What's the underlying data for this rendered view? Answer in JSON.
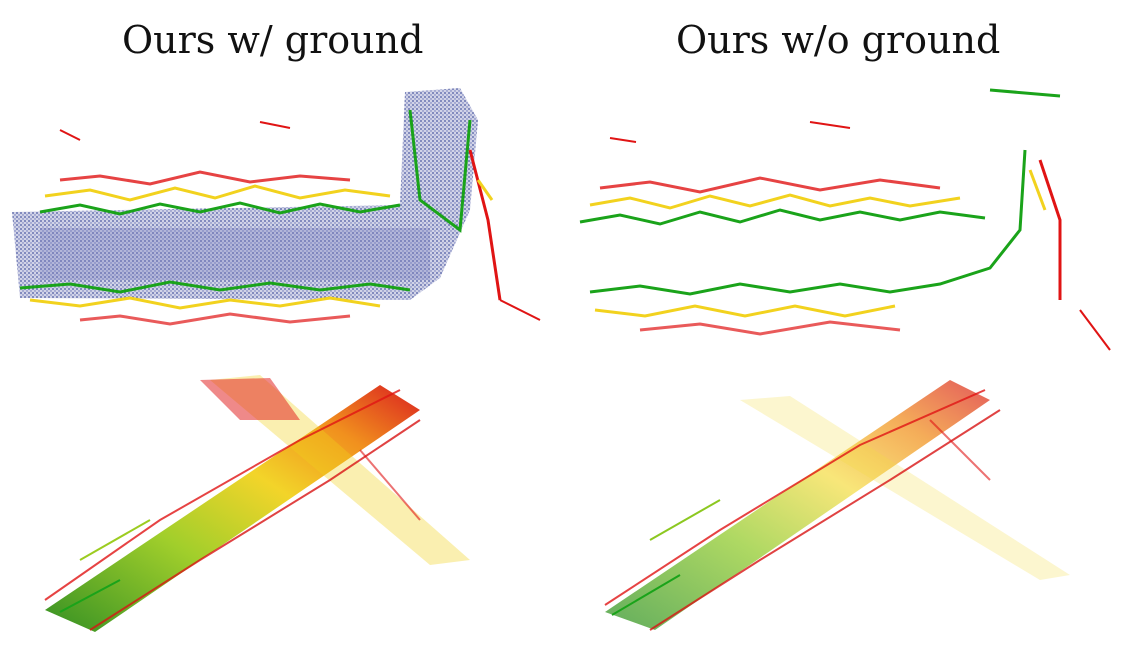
{
  "figure": {
    "left_title": "Ours w/ ground",
    "right_title": "Ours w/o ground"
  },
  "colormap": {
    "ground": "#1f2f8a",
    "low": "#1aa31a",
    "mid": "#f2d21e",
    "high": "#e01414"
  }
}
